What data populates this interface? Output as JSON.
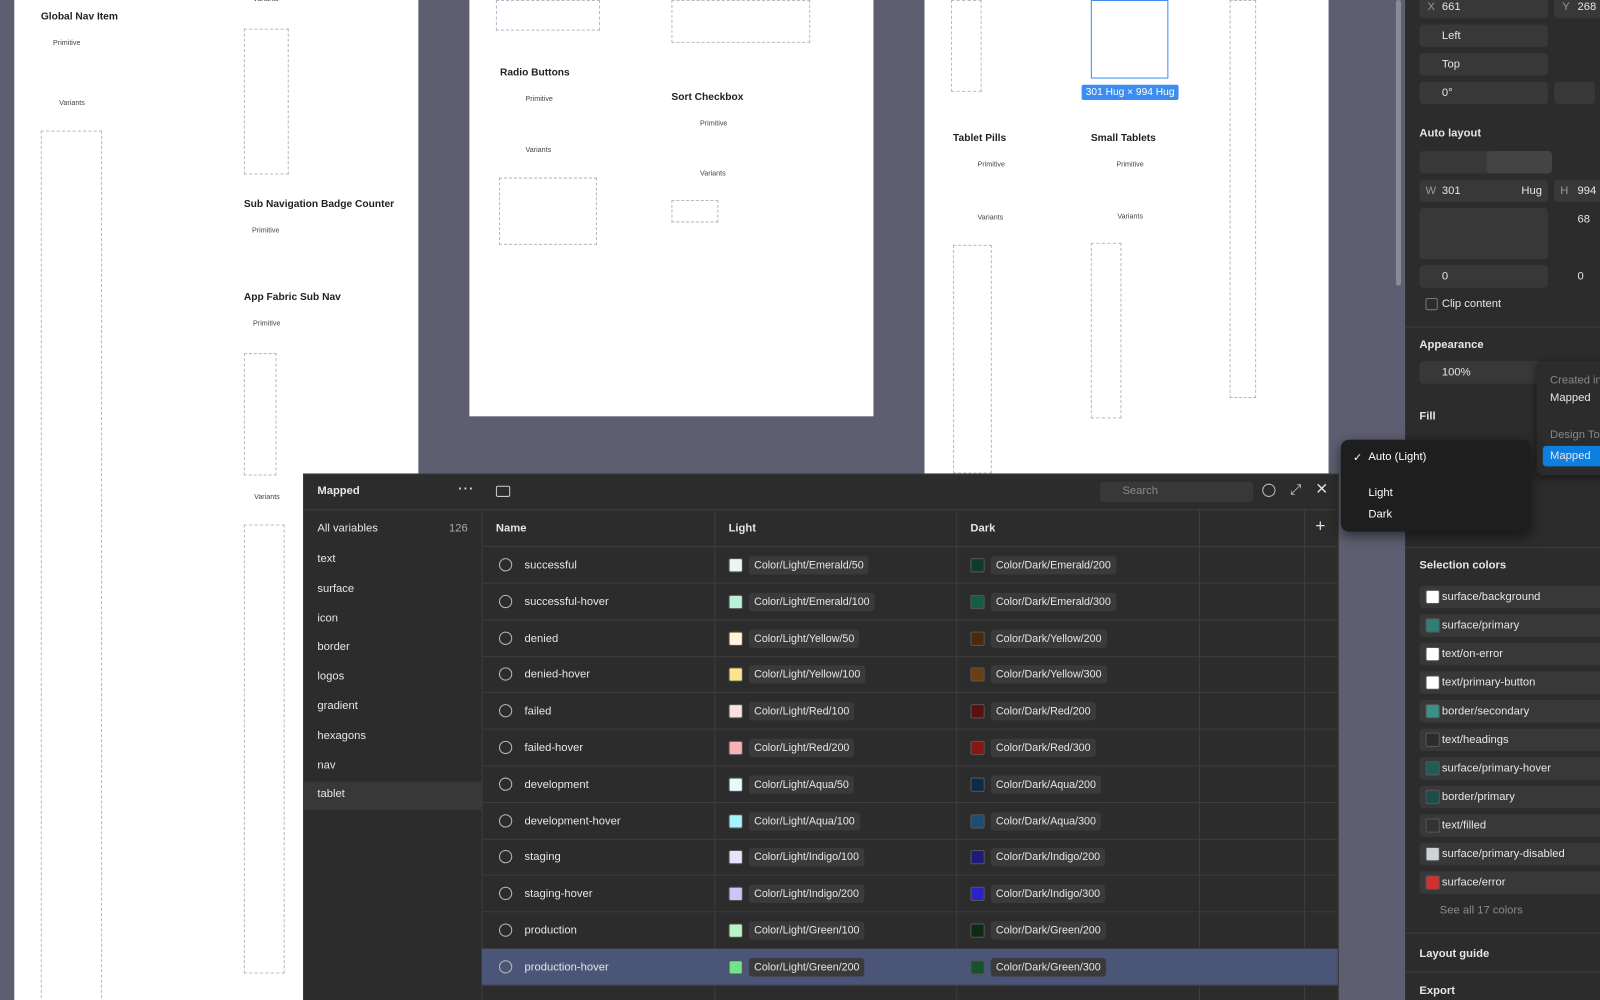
{
  "canvas": {
    "frame_a": [
      "Variants",
      "Global Nav Item",
      "Primitive",
      "Variants",
      "Sub Navigation Badge Counter",
      "Primitive",
      "App Fabric Sub Nav",
      "Primitive",
      "Variants"
    ],
    "frame_b": [
      "Radio Buttons",
      "Primitive",
      "Variants",
      "Sort Checkbox",
      "Primitive",
      "Variants"
    ],
    "frame_c": [
      "Tablet Pills",
      "Primitive",
      "Variants",
      "Small Tablets",
      "Primitive",
      "Variants"
    ],
    "selection_size": "301 Hug × 994 Hug"
  },
  "variables": {
    "collection": "Mapped",
    "search_placeholder": "Search",
    "all_label": "All variables",
    "all_count": 126,
    "groups": [
      "text",
      "surface",
      "icon",
      "border",
      "logos",
      "gradient",
      "hexagons",
      "nav",
      "tablet"
    ],
    "selected_group": 8,
    "columns": [
      "Name",
      "Light",
      "Dark"
    ],
    "rows": [
      {
        "name": "successful",
        "light": "Color/Light/Emerald/50",
        "light_color": "#e8f8f1",
        "dark": "Color/Dark/Emerald/200",
        "dark_color": "#0f3a2c"
      },
      {
        "name": "successful-hover",
        "light": "Color/Light/Emerald/100",
        "light_color": "#b9f0d8",
        "dark": "Color/Dark/Emerald/300",
        "dark_color": "#155c45"
      },
      {
        "name": "denied",
        "light": "Color/Light/Yellow/50",
        "light_color": "#fff7d6",
        "dark": "Color/Dark/Yellow/200",
        "dark_color": "#4a2a0a"
      },
      {
        "name": "denied-hover",
        "light": "Color/Light/Yellow/100",
        "light_color": "#fde68a",
        "dark": "Color/Dark/Yellow/300",
        "dark_color": "#6b3f12"
      },
      {
        "name": "failed",
        "light": "Color/Light/Red/100",
        "light_color": "#fde0e0",
        "dark": "Color/Dark/Red/200",
        "dark_color": "#5c0f0f"
      },
      {
        "name": "failed-hover",
        "light": "Color/Light/Red/200",
        "light_color": "#f8b4b4",
        "dark": "Color/Dark/Red/300",
        "dark_color": "#8a1515"
      },
      {
        "name": "development",
        "light": "Color/Light/Aqua/50",
        "light_color": "#e6fbfd",
        "dark": "Color/Dark/Aqua/200",
        "dark_color": "#0c2b46"
      },
      {
        "name": "development-hover",
        "light": "Color/Light/Aqua/100",
        "light_color": "#a5f3fc",
        "dark": "Color/Dark/Aqua/300",
        "dark_color": "#1e4d73"
      },
      {
        "name": "staging",
        "light": "Color/Light/Indigo/100",
        "light_color": "#e4e4fb",
        "dark": "Color/Dark/Indigo/200",
        "dark_color": "#1e1b7a"
      },
      {
        "name": "staging-hover",
        "light": "Color/Light/Indigo/200",
        "light_color": "#c7c8f7",
        "dark": "Color/Dark/Indigo/300",
        "dark_color": "#2b22c8"
      },
      {
        "name": "production",
        "light": "Color/Light/Green/100",
        "light_color": "#b7f5c9",
        "dark": "Color/Dark/Green/200",
        "dark_color": "#0c2a14"
      },
      {
        "name": "production-hover",
        "light": "Color/Light/Green/200",
        "light_color": "#6ee58a",
        "dark": "Color/Dark/Green/300",
        "dark_color": "#14532d"
      }
    ],
    "selected_row": 11
  },
  "mode_menu": {
    "items": [
      "Auto (Light)",
      "Light",
      "Dark"
    ],
    "checked": 0
  },
  "mode_popup": [
    "Created in",
    "Mapped",
    "Design To",
    "Mapped"
  ],
  "properties": {
    "x_label": "X",
    "x": 661,
    "y_label": "Y",
    "y": 268,
    "align": "Left",
    "valign": "Top",
    "rotation": "0°",
    "auto_layout": "Auto layout",
    "w_label": "W",
    "w": 301,
    "w_mode": "Hug",
    "h_label": "H",
    "h": 994,
    "gap": 68,
    "padding_h": 0,
    "padding_v": 0,
    "clip": "Clip content",
    "appearance": "Appearance",
    "opacity": "100%",
    "fill": "Fill",
    "selection_colors": "Selection colors",
    "colors": [
      {
        "name": "surface/background",
        "color": "#ffffff"
      },
      {
        "name": "surface/primary",
        "color": "#2f7f78"
      },
      {
        "name": "text/on-error",
        "color": "#ffffff"
      },
      {
        "name": "text/primary-button",
        "color": "#ffffff"
      },
      {
        "name": "border/secondary",
        "color": "#3a9188"
      },
      {
        "name": "text/headings",
        "color": "#2c2c2c"
      },
      {
        "name": "surface/primary-hover",
        "color": "#1f5c57"
      },
      {
        "name": "border/primary",
        "color": "#1c4d4a"
      },
      {
        "name": "text/filled",
        "color": "#333333"
      },
      {
        "name": "surface/primary-disabled",
        "color": "#d0d3d6"
      },
      {
        "name": "surface/error",
        "color": "#d32f2f"
      }
    ],
    "see_all": "See all 17 colors",
    "layout_guide": "Layout guide",
    "export": "Export"
  }
}
